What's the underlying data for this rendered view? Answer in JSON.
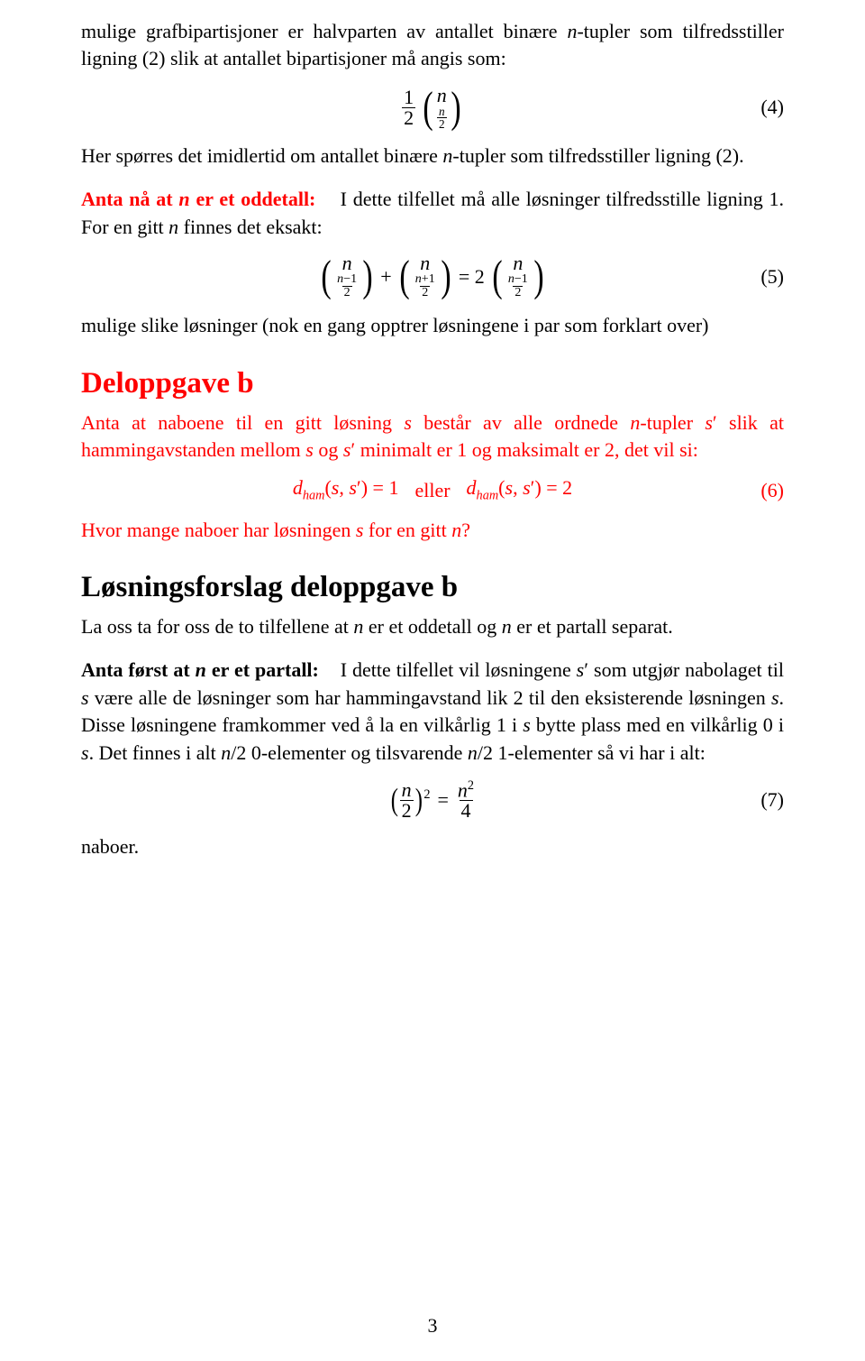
{
  "colors": {
    "text": "#000000",
    "accent": "#ff0000",
    "background": "#ffffff"
  },
  "p1a": "mulige grafbipartisjoner er halvparten av antallet binære ",
  "p1b": "-tupler som tilfredsstiller ligning (2) slik at antallet bipartisjoner må angis som:",
  "eq4": {
    "half_num": "1",
    "half_den": "2",
    "top": "n",
    "bot_num": "n",
    "bot_den": "2",
    "label": "(4)"
  },
  "p2a": "Her spørres det imidlertid om antallet binære ",
  "p2b": "-tupler som tilfredsstiller ligning (2).",
  "odd": {
    "runin": "Anta nå at ",
    "runin_tail": " er et oddetall:",
    "body_a": "I dette tilfellet må alle løsninger tilfredsstille ligning 1. For en gitt ",
    "body_b": " finnes det eksakt:"
  },
  "eq5": {
    "t1_top": "n",
    "t1_bot": "(n−1)/2",
    "plus": "+",
    "t2_top": "n",
    "t2_bot": "(n+1)/2",
    "eq": "= 2",
    "t3_top": "n",
    "t3_bot": "(n−1)/2",
    "label": "(5)"
  },
  "p3": "mulige slike løsninger (nok en gang opptrer løsningene i par som forklart over)",
  "h_b": "Deloppgave b",
  "pb_a": "Anta at naboene til en gitt løsning ",
  "pb_b": " består av alle ordnede ",
  "pb_c": "-tupler ",
  "pb_d": " slik at hammingavstanden mellom ",
  "pb_e": " og ",
  "pb_f": " minimalt er 1 og maksimalt er 2, det vil si:",
  "eq6": {
    "lhs": "dₕₐₘ(s, s′) = 1",
    "mid": "eller",
    "rhs": "dₕₐₘ(s, s′) = 2",
    "label": "(6)"
  },
  "pq_a": "Hvor mange naboer har løsningen ",
  "pq_b": " for en gitt ",
  "pq_c": "?",
  "h_sol": "Løsningsforslag deloppgave b",
  "psol_a": "La oss ta for oss de to tilfellene at ",
  "psol_b": " er et oddetall og ",
  "psol_c": " er et partall separat.",
  "even": {
    "runin_a": "Anta først at ",
    "runin_b": " er et partall:",
    "body_a": "I dette tilfellet vil løsningene ",
    "body_b": " som utgjør nabolaget til ",
    "body_c": " være alle de løsninger som har hammingavstand lik 2 til den eksisterende løsningen ",
    "body_d": ". Disse løsningene framkommer ved å la en vilkårlig 1 i ",
    "body_e": " bytte plass med en vilkårlig 0 i ",
    "body_f": ". Det finnes i alt ",
    "body_g": " 0-elementer og tilsvarende ",
    "body_h": " 1-elementer så vi har i alt:"
  },
  "eq7": {
    "lhs_num": "n",
    "lhs_den": "2",
    "exp": "2",
    "eq": "=",
    "rhs_num": "n²",
    "rhs_den": "4",
    "label": "(7)"
  },
  "naboer": "naboer.",
  "pagenum": "3"
}
